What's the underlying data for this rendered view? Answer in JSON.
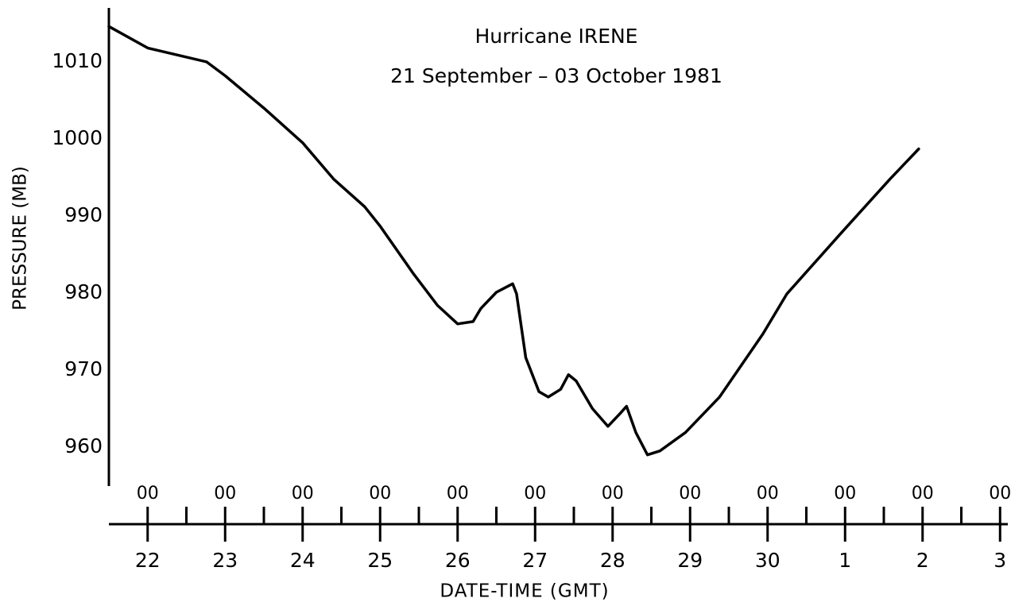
{
  "chart_data": {
    "type": "line",
    "title": "Hurricane IRENE",
    "subtitle": "21 September – 03 October 1981",
    "y_label": "PRESSURE (MB)",
    "x_label": "DATE-TIME (GMT)",
    "xlim": [
      21.5,
      33.1
    ],
    "ylim": [
      950,
      1017
    ],
    "xticks": [
      22,
      23,
      24,
      25,
      26,
      27,
      28,
      29,
      30,
      {
        "value": 31,
        "label": "1"
      },
      {
        "value": 32,
        "label": "2"
      },
      {
        "value": 33,
        "label": "3"
      }
    ],
    "xtick_hours": [
      "00",
      "00",
      "00",
      "00",
      "00",
      "00",
      "00",
      "00",
      "00",
      "00",
      "00",
      "00"
    ],
    "xminor": [
      22.5,
      23.5,
      24.5,
      25.5,
      26.5,
      27.5,
      28.5,
      29.5,
      30.5,
      31.5,
      32.5
    ],
    "yticks": [
      960,
      970,
      980,
      990,
      1000,
      1010
    ],
    "grid": false,
    "series": [
      {
        "color": "#000000",
        "x": [
          21.5,
          22.0,
          22.76,
          23.0,
          23.5,
          24.0,
          24.4,
          24.8,
          25.0,
          25.43,
          25.74,
          26.0,
          26.2,
          26.3,
          26.5,
          26.71,
          26.76,
          26.88,
          27.05,
          27.17,
          27.33,
          27.43,
          27.53,
          27.74,
          27.94,
          28.1,
          28.18,
          28.3,
          28.45,
          28.61,
          28.94,
          29.38,
          29.94,
          30.25,
          30.95,
          31.58,
          31.95
        ],
        "values": [
          1014.6,
          1011.8,
          1010,
          1008.2,
          1004,
          999.5,
          994.8,
          991.2,
          988.7,
          982.5,
          978.4,
          976,
          976.3,
          978,
          980.1,
          981.2,
          979.9,
          971.6,
          967.2,
          966.5,
          967.5,
          969.4,
          968.6,
          965,
          962.7,
          964.4,
          965.3,
          961.9,
          959,
          959.5,
          961.9,
          966.5,
          974.7,
          979.9,
          987.8,
          994.8,
          998.7
        ]
      }
    ]
  }
}
